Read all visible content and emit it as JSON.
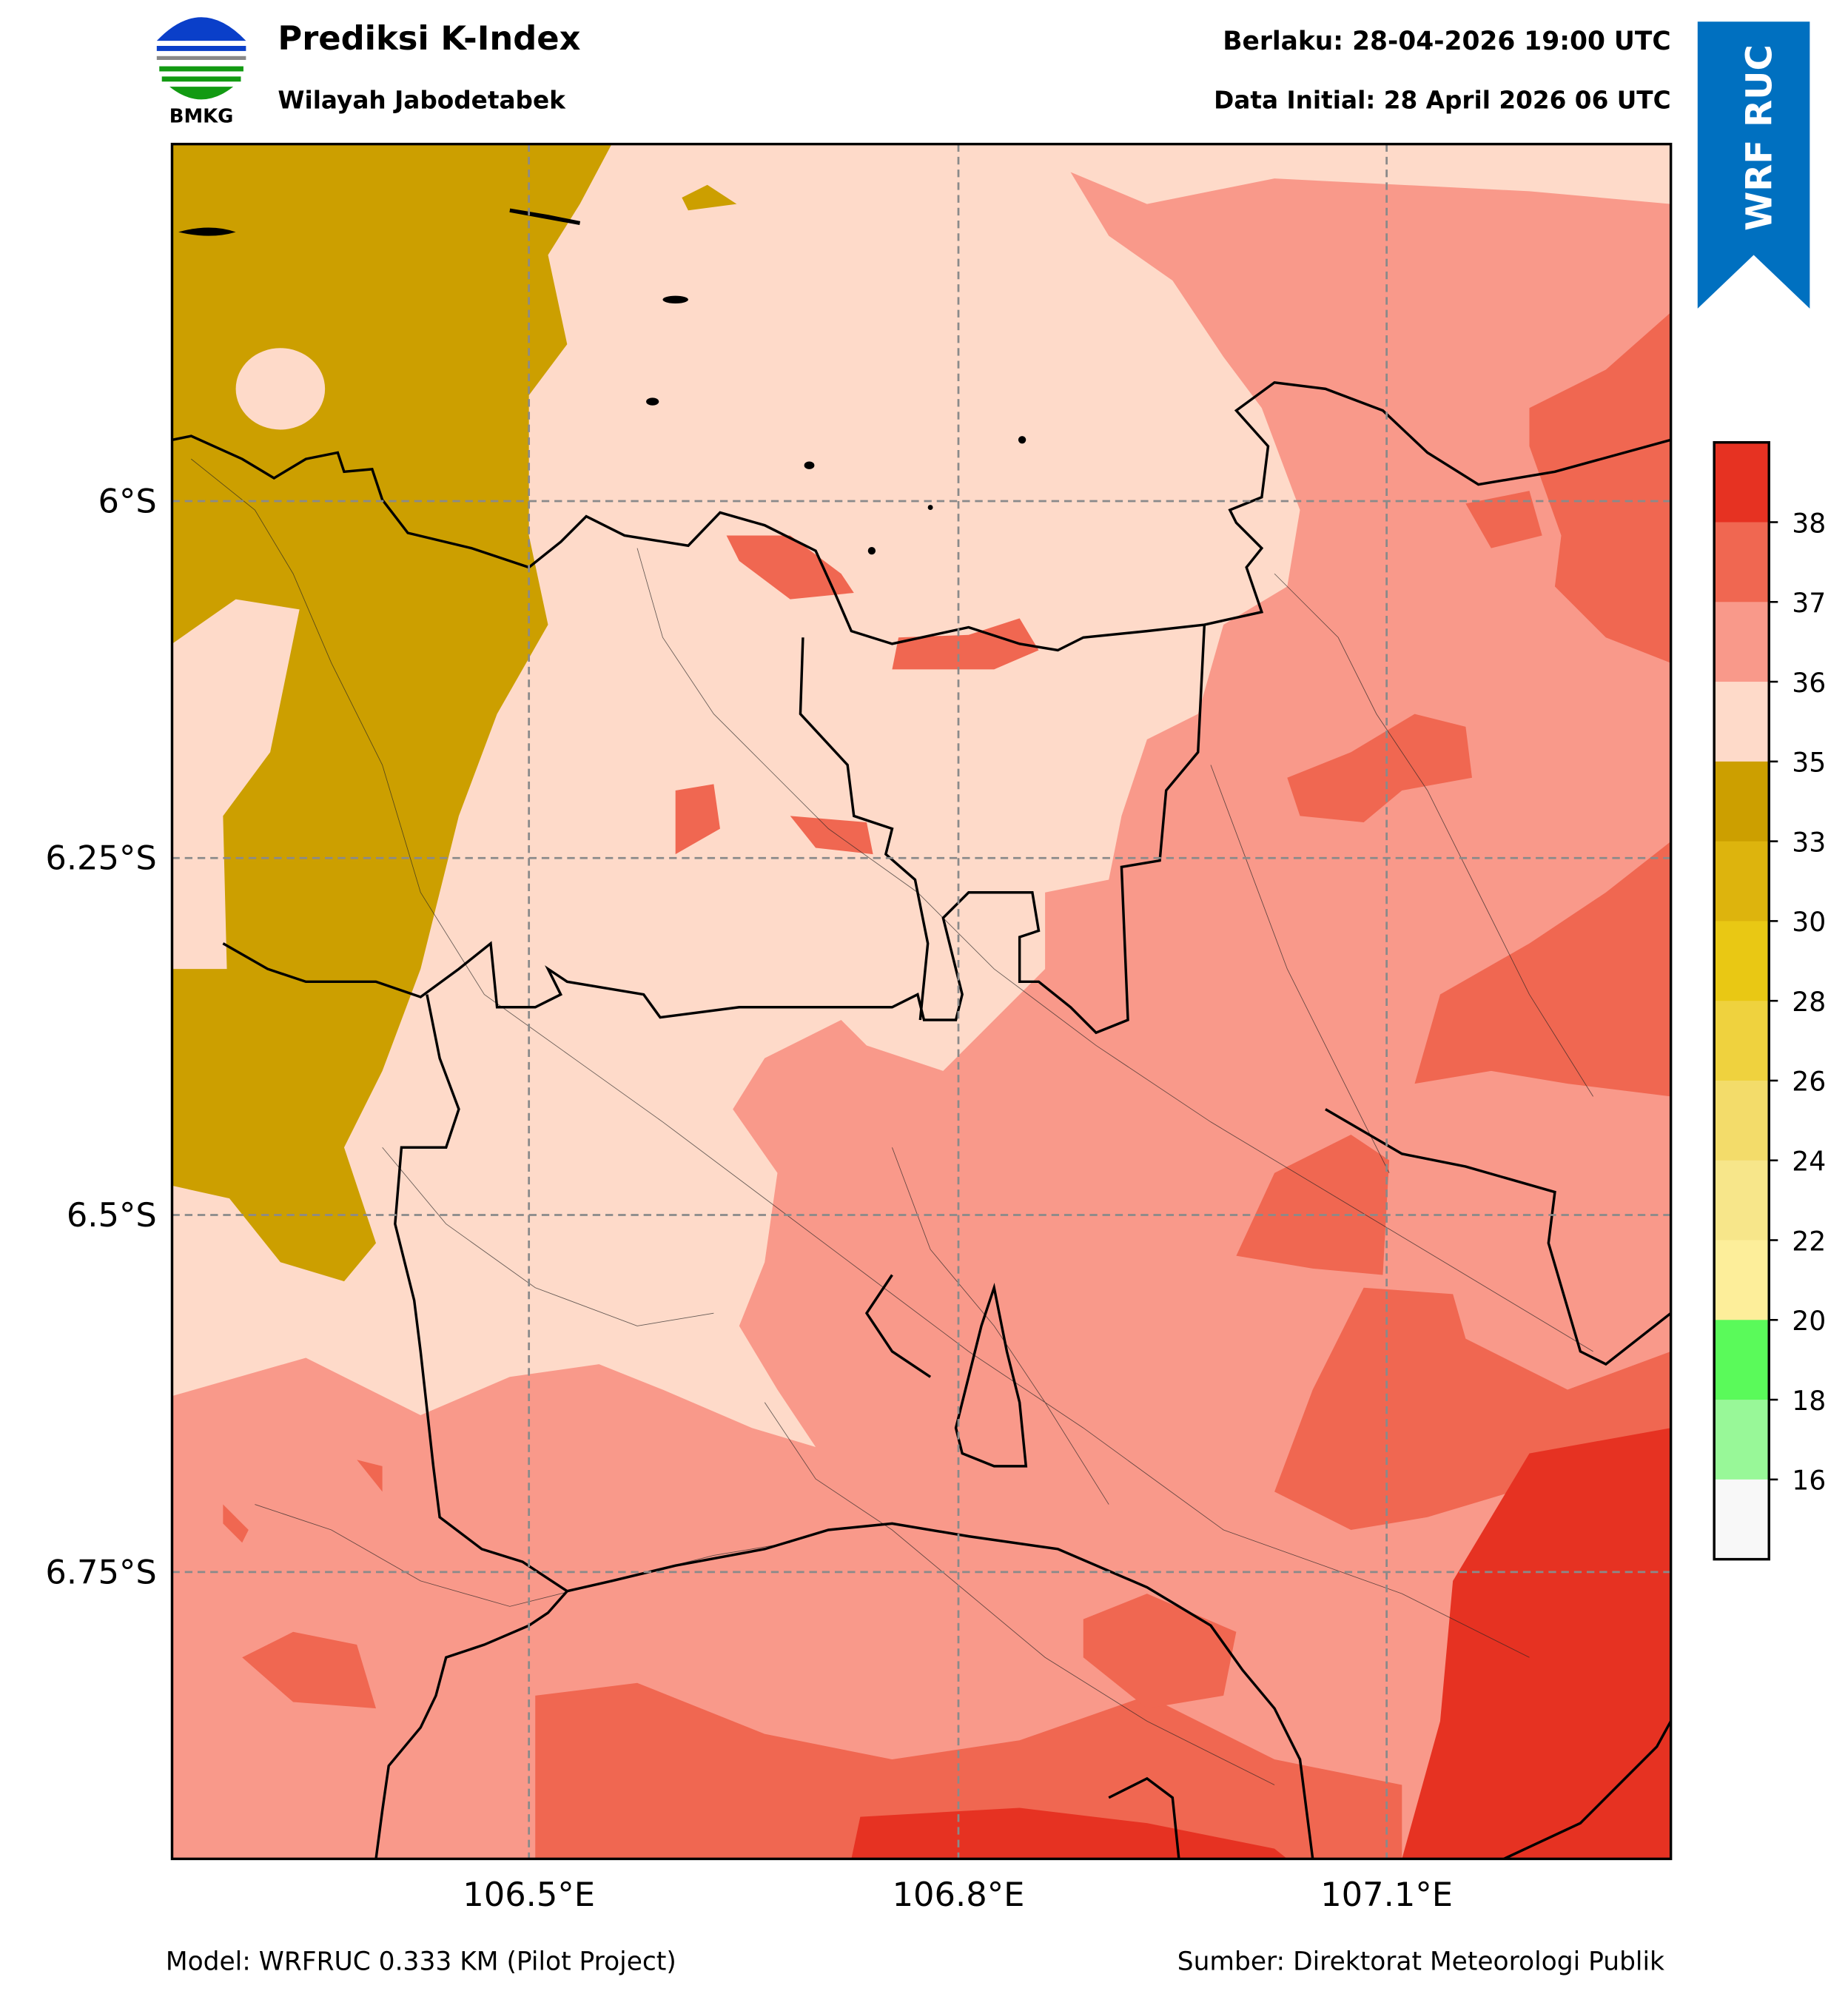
{
  "header": {
    "title": "Prediksi K-Index",
    "subtitle": "Wilayah Jabodetabek",
    "valid": "Berlaku: 28-04-2026 19:00 UTC",
    "init": "Data Initial: 28 April 2026 06 UTC",
    "logo_text": "BMKG",
    "ribbon": "WRF RUC"
  },
  "colors": {
    "ribbon": "#0070c0"
  },
  "map": {
    "lon_ticks": [
      "106.5°E",
      "106.8°E",
      "107.1°E"
    ],
    "lat_ticks": [
      "6°S",
      "6.25°S",
      "6.5°S",
      "6.75°S"
    ]
  },
  "colorbar": {
    "tick_labels": [
      "38",
      "37",
      "36",
      "35",
      "33",
      "30",
      "28",
      "26",
      "24",
      "22",
      "20",
      "18",
      "16"
    ],
    "levels_top_to_bottom": [
      "#e63222",
      "#f06751",
      "#f9998a",
      "#fedac9",
      "#cc9f00",
      "#ddb40d",
      "#e9c814",
      "#efd23e",
      "#f3dc6a",
      "#f7e68a",
      "#fdee9a",
      "#5afa5a",
      "#98f898",
      "#f8f8f8"
    ]
  },
  "footer": {
    "model": "Model: WRFRUC 0.333 KM (Pilot Project)",
    "source": "Sumber: Direktorat Meteorologi Publik"
  }
}
